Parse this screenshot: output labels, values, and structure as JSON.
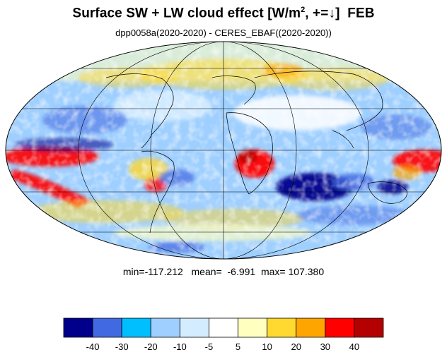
{
  "title": {
    "main": "Surface SW + LW cloud effect [W/m",
    "superscript": "2",
    "sign_part": ", +=",
    "arrow": "↓",
    "close": "]",
    "month": "FEB"
  },
  "subtitle": "dpp0058a(2020-2020) - CERES_EBAF((2020-2020))",
  "stats": {
    "min_label": "min=",
    "min": "-117.212",
    "mean_label": "mean=",
    "mean": "-6.991",
    "max_label": "max=",
    "max": "107.380"
  },
  "colorbar": {
    "colors": [
      "#00008b",
      "#4169e1",
      "#00bfff",
      "#9fcfff",
      "#d4ecff",
      "#ffffff",
      "#ffffc0",
      "#ffd830",
      "#ffa500",
      "#ff0000",
      "#b40000"
    ],
    "labels": [
      "-40",
      "-30",
      "-20",
      "-10",
      "-5",
      "5",
      "10",
      "20",
      "30",
      "40"
    ]
  }
}
